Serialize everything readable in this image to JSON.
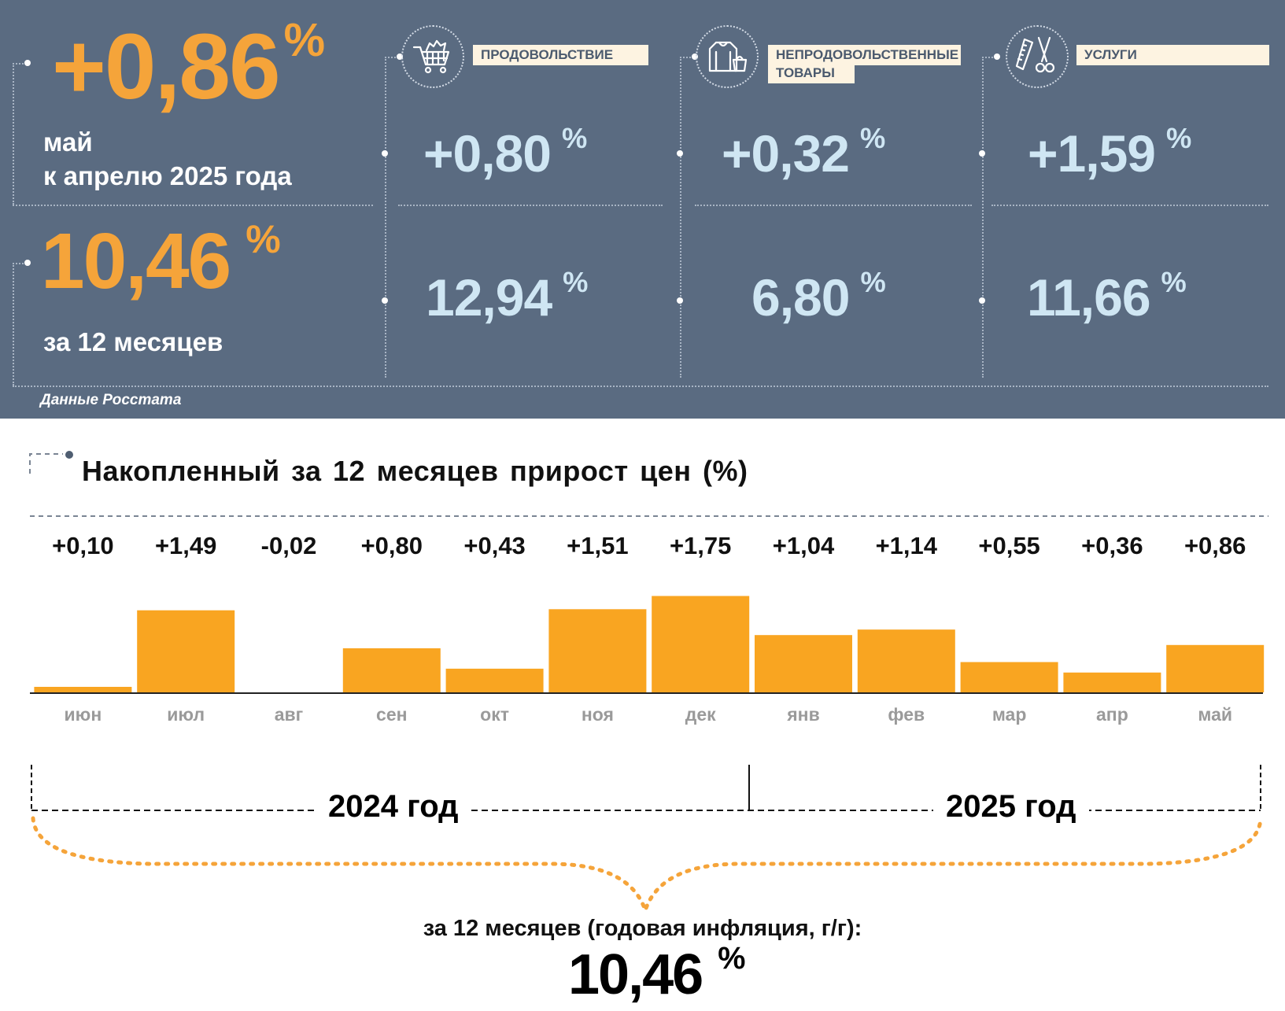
{
  "headline": {
    "monthly_value": "+0,86",
    "monthly_unit": "%",
    "monthly_caption_1": "май",
    "monthly_caption_2": "к апрелю 2025 года",
    "annual_value": "10,46",
    "annual_unit": "%",
    "annual_caption": "за 12 месяцев"
  },
  "categories": [
    {
      "name": "ПРОДОВОЛЬСТВИЕ",
      "icon": "shopping-cart-icon",
      "monthly": "+0,80",
      "annual": "12,94",
      "unit": "%"
    },
    {
      "name_line1": "НЕПРОДОВОЛЬСТВЕННЫЕ",
      "name_line2": "ТОВАРЫ",
      "icon": "clothing-icon",
      "monthly": "+0,32",
      "annual": "6,80",
      "unit": "%"
    },
    {
      "name": "УСЛУГИ",
      "icon": "comb-scissors-icon",
      "monthly": "+1,59",
      "annual": "11,66",
      "unit": "%"
    }
  ],
  "source": "Данные Росстата",
  "chart_data": {
    "type": "bar",
    "title": "Накопленный за 12 месяцев прирост цен (%)",
    "categories": [
      "июн",
      "июл",
      "авг",
      "сен",
      "окт",
      "ноя",
      "дек",
      "янв",
      "фев",
      "мар",
      "апр",
      "май"
    ],
    "values": [
      0.1,
      1.49,
      -0.02,
      0.8,
      0.43,
      1.51,
      1.75,
      1.04,
      1.14,
      0.55,
      0.36,
      0.86
    ],
    "value_labels": [
      "+0,10",
      "+1,49",
      "-0,02",
      "+0,80",
      "+0,43",
      "+1,51",
      "+1,75",
      "+1,04",
      "+1,14",
      "+0,55",
      "+0,36",
      "+0,86"
    ],
    "bar_color": "#f9a521",
    "year_groups": [
      "2024 год",
      "2025 год"
    ]
  },
  "summary": {
    "caption": "за 12 месяцев (годовая инфляция, г/г):",
    "value": "10,46",
    "unit": "%"
  },
  "colors": {
    "panel_bg": "#5a6b81",
    "accent_orange": "#f5a43a",
    "value_blue": "#cfe6f3",
    "label_bg": "#fdf3e1"
  }
}
